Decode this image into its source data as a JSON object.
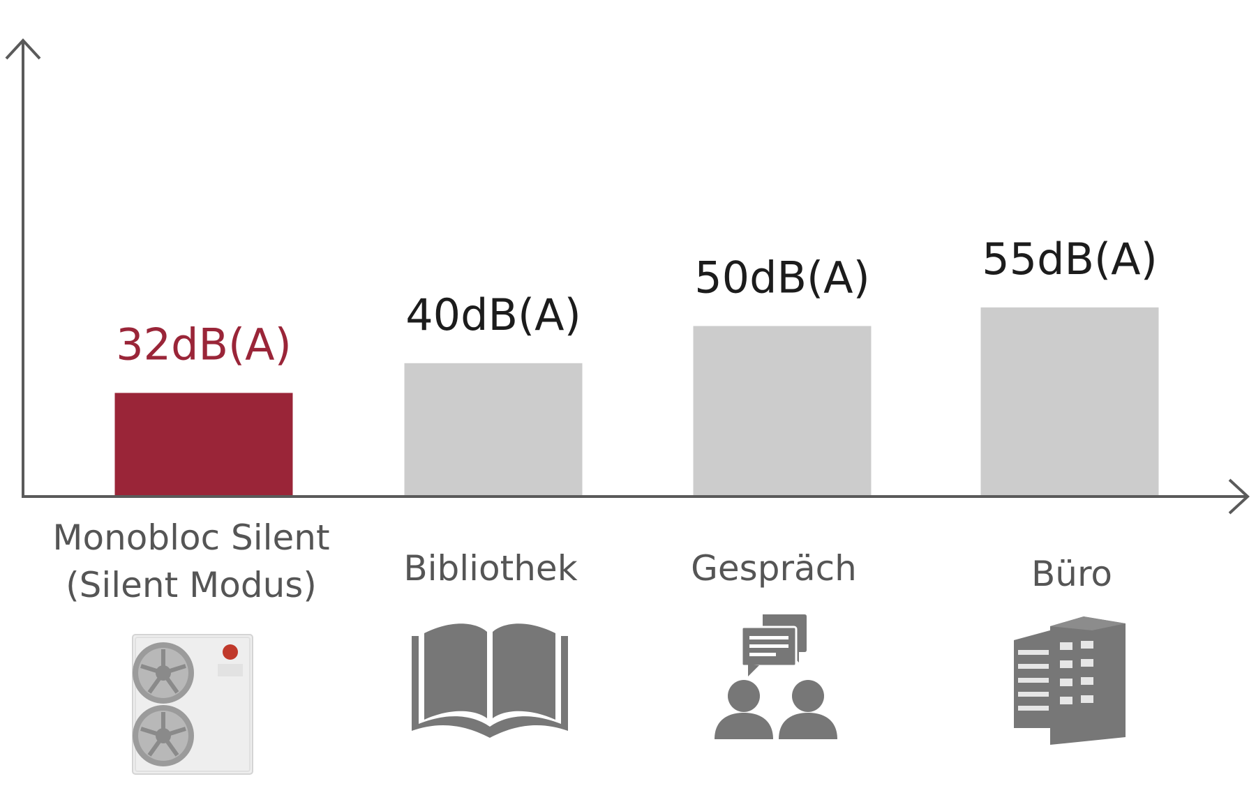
{
  "chart_data": {
    "type": "bar",
    "categories": [
      "Monobloc Silent",
      "Bibliothek",
      "Gespräch",
      "Büro"
    ],
    "category_sublabels": [
      "(Silent Modus)",
      "",
      "",
      ""
    ],
    "values": [
      32,
      40,
      50,
      55
    ],
    "value_labels": [
      "32dB(A)",
      "40dB(A)",
      "50dB(A)",
      "55dB(A)"
    ],
    "unit": "dB(A)",
    "ylim": [
      0,
      70
    ],
    "grid": false,
    "legend": "none",
    "highlight_index": 0,
    "colors": {
      "highlight": "#9a2538",
      "bar": "#cccccc",
      "axis": "#5a5a5a",
      "value_text": "#1c1c1c",
      "category_text": "#555555",
      "icon": "#777777"
    },
    "icons": [
      "heat-pump-unit-icon",
      "open-book-icon",
      "conversation-icon",
      "office-building-icon"
    ]
  }
}
